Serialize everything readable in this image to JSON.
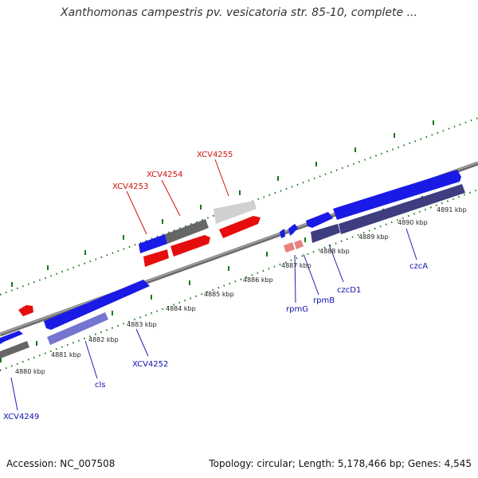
{
  "title": "Xanthomonas campestris pv. vesicatoria str. 85-10, complete ...",
  "footer": {
    "accession": "Accession: NC_007508",
    "summary": "Topology: circular; Length: 5,178,466 bp; Genes: 4,545"
  },
  "colors": {
    "forward_gene": "#1a1ae6",
    "reverse_gene": "#e60d0d",
    "selected_gene": "#666666",
    "rna_gene": "#e88080",
    "cds_feature": "#3d3d80",
    "cds_feature_light": "#7575d0",
    "label_blue": "#1010b0",
    "label_red": "#d01010",
    "tick_green": "#157a15",
    "backbone": "#888888"
  },
  "position_ticks": [
    {
      "label": "4880 kbp"
    },
    {
      "label": "4881 kbp"
    },
    {
      "label": "4882 kbp"
    },
    {
      "label": "4883 kbp"
    },
    {
      "label": "4884 kbp"
    },
    {
      "label": "4885 kbp"
    },
    {
      "label": "4886 kbp"
    },
    {
      "label": "4887 kbp"
    },
    {
      "label": "4888 kbp"
    },
    {
      "label": "4889 kbp"
    },
    {
      "label": "4890 kbp"
    },
    {
      "label": "4891 kbp"
    }
  ],
  "gene_labels": [
    {
      "text": "XCV4249",
      "strand": "forward"
    },
    {
      "text": "cls",
      "strand": "forward"
    },
    {
      "text": "XCV4252",
      "strand": "forward"
    },
    {
      "text": "XCV4253",
      "strand": "reverse"
    },
    {
      "text": "XCV4254",
      "strand": "reverse"
    },
    {
      "text": "XCV4255",
      "strand": "reverse"
    },
    {
      "text": "rpmG",
      "strand": "forward"
    },
    {
      "text": "rpmB",
      "strand": "forward"
    },
    {
      "text": "czcD1",
      "strand": "forward"
    },
    {
      "text": "czcA",
      "strand": "forward"
    }
  ]
}
